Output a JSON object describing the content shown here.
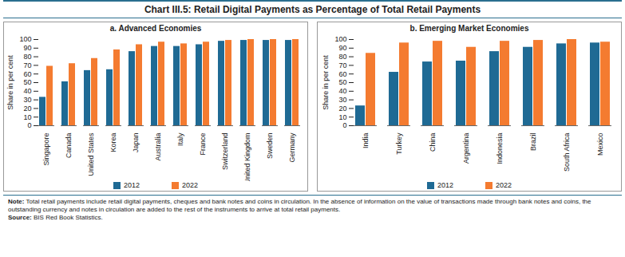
{
  "title": "Chart III.5: Retail Digital Payments as Percentage of Total Retail Payments",
  "chart_data": [
    {
      "type": "bar",
      "title": "a. Advanced Economies",
      "categories": [
        "Singapore",
        "Canada",
        "United States",
        "Korea",
        "Japan",
        "Australia",
        "Italy",
        "France",
        "Switzerland",
        "United Kingdom",
        "Sweden",
        "Germany"
      ],
      "series": [
        {
          "name": "2012",
          "color": "#1f6a94",
          "values": [
            33,
            51,
            64,
            65,
            86,
            92,
            92,
            94,
            98,
            99,
            99,
            99
          ]
        },
        {
          "name": "2022",
          "color": "#f47b30",
          "values": [
            69,
            72,
            78,
            88,
            94,
            97,
            95,
            97,
            99,
            100,
            100,
            100
          ]
        }
      ],
      "y_label": "Share in per cent",
      "ylim": [
        0,
        100
      ],
      "yticks": [
        0,
        10,
        20,
        30,
        40,
        50,
        60,
        70,
        80,
        90,
        100
      ],
      "grid": false,
      "legend": "bottom"
    },
    {
      "type": "bar",
      "title": "b. Emerging Market Economies",
      "categories": [
        "India",
        "Turkey",
        "China",
        "Argentina",
        "Indonesia",
        "Brazil",
        "South Africa",
        "Mexico"
      ],
      "series": [
        {
          "name": "2012",
          "color": "#1f6a94",
          "values": [
            23,
            62,
            74,
            75,
            86,
            91,
            95,
            96
          ]
        },
        {
          "name": "2022",
          "color": "#f47b30",
          "values": [
            84,
            96,
            98,
            91,
            98,
            99,
            100,
            97
          ]
        }
      ],
      "y_label": "Share in per cent",
      "ylim": [
        0,
        100
      ],
      "yticks": [
        0,
        10,
        20,
        30,
        40,
        50,
        60,
        70,
        80,
        90,
        100
      ],
      "grid": false,
      "legend": "bottom"
    }
  ],
  "note_label": "Note:",
  "note": "Total retail payments include retail digital payments, cheques and bank notes and coins in circulation. In the absence of information on the value of transactions made through bank notes and coins, the outstanding currency and notes in circulation are added to the rest of the instruments to arrive at total retail payments.",
  "source_label": "Source:",
  "source": "BIS Red Book Statistics."
}
